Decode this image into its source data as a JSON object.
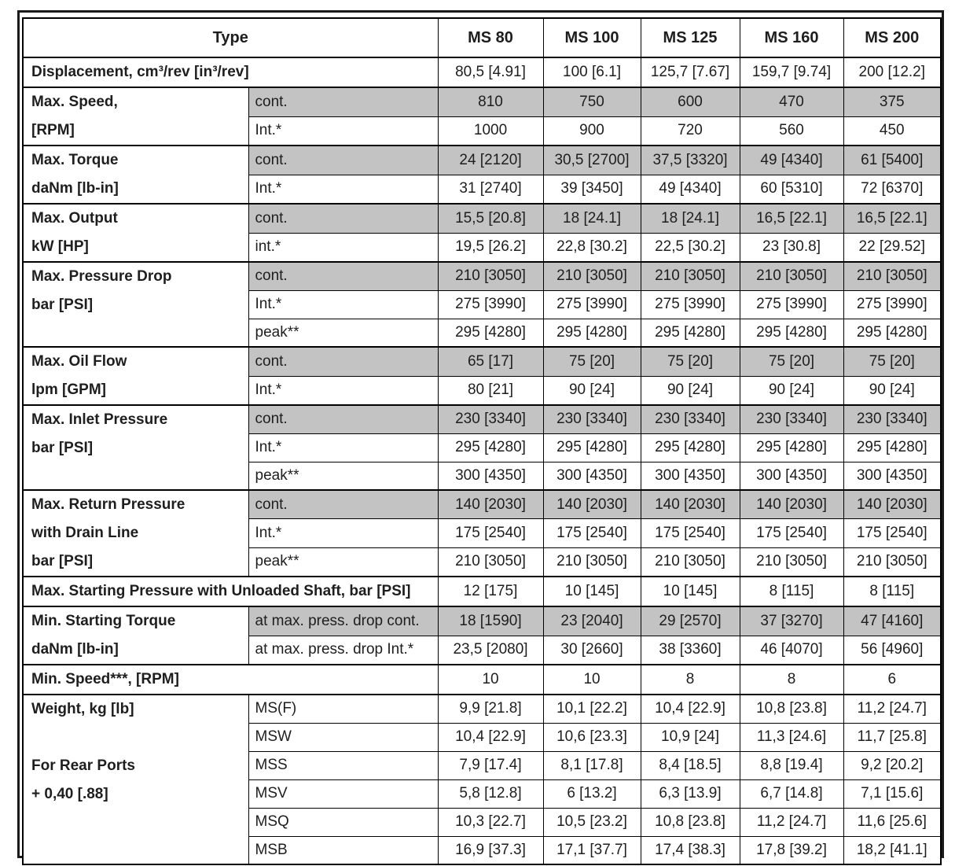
{
  "table": {
    "type_header": "Type",
    "columns": [
      "MS 80",
      "MS 100",
      "MS 125",
      "MS 160",
      "MS 200"
    ],
    "colors": {
      "shaded_cell": "#c3c3c3",
      "border": "#000000",
      "text": "#1e1e1e"
    },
    "groups": [
      {
        "label_lines": [
          "Displacement, cm³/rev [in³/rev]"
        ],
        "full_width_label": true,
        "rows": [
          {
            "sublabel": null,
            "shaded": false,
            "values": [
              "80,5 [4.91]",
              "100 [6.1]",
              "125,7 [7.67]",
              "159,7 [9.74]",
              "200 [12.2]"
            ]
          }
        ]
      },
      {
        "label_lines": [
          "Max. Speed,",
          "[RPM]"
        ],
        "full_width_label": false,
        "rows": [
          {
            "sublabel": "cont.",
            "shaded": true,
            "values": [
              "810",
              "750",
              "600",
              "470",
              "375"
            ]
          },
          {
            "sublabel": "Int.*",
            "shaded": false,
            "values": [
              "1000",
              "900",
              "720",
              "560",
              "450"
            ]
          }
        ]
      },
      {
        "label_lines": [
          "Max. Torque",
          "daNm [lb-in]"
        ],
        "full_width_label": false,
        "rows": [
          {
            "sublabel": "cont.",
            "shaded": true,
            "values": [
              "24 [2120]",
              "30,5 [2700]",
              "37,5 [3320]",
              "49 [4340]",
              "61 [5400]"
            ]
          },
          {
            "sublabel": "Int.*",
            "shaded": false,
            "values": [
              "31 [2740]",
              "39 [3450]",
              "49 [4340]",
              "60 [5310]",
              "72 [6370]"
            ]
          }
        ]
      },
      {
        "label_lines": [
          "Max. Output",
          "kW [HP]"
        ],
        "full_width_label": false,
        "rows": [
          {
            "sublabel": "cont.",
            "shaded": true,
            "values": [
              "15,5 [20.8]",
              "18 [24.1]",
              "18 [24.1]",
              "16,5 [22.1]",
              "16,5 [22.1]"
            ]
          },
          {
            "sublabel": "int.*",
            "shaded": false,
            "values": [
              "19,5 [26.2]",
              "22,8 [30.2]",
              "22,5 [30.2]",
              "23 [30.8]",
              "22 [29.52]"
            ]
          }
        ]
      },
      {
        "label_lines": [
          "Max. Pressure Drop",
          "bar [PSI]"
        ],
        "full_width_label": false,
        "rows": [
          {
            "sublabel": "cont.",
            "shaded": true,
            "values": [
              "210 [3050]",
              "210 [3050]",
              "210 [3050]",
              "210 [3050]",
              "210 [3050]"
            ]
          },
          {
            "sublabel": "Int.*",
            "shaded": false,
            "values": [
              "275 [3990]",
              "275 [3990]",
              "275 [3990]",
              "275 [3990]",
              "275 [3990]"
            ]
          },
          {
            "sublabel": "peak**",
            "shaded": false,
            "values": [
              "295 [4280]",
              "295 [4280]",
              "295 [4280]",
              "295 [4280]",
              "295 [4280]"
            ]
          }
        ]
      },
      {
        "label_lines": [
          "Max. Oil Flow",
          "lpm [GPM]"
        ],
        "full_width_label": false,
        "rows": [
          {
            "sublabel": "cont.",
            "shaded": true,
            "values": [
              "65 [17]",
              "75 [20]",
              "75 [20]",
              "75 [20]",
              "75 [20]"
            ]
          },
          {
            "sublabel": "Int.*",
            "shaded": false,
            "values": [
              "80 [21]",
              "90 [24]",
              "90 [24]",
              "90 [24]",
              "90 [24]"
            ]
          }
        ]
      },
      {
        "label_lines": [
          "Max. Inlet Pressure",
          "bar [PSI]"
        ],
        "full_width_label": false,
        "rows": [
          {
            "sublabel": "cont.",
            "shaded": true,
            "values": [
              "230 [3340]",
              "230 [3340]",
              "230 [3340]",
              "230 [3340]",
              "230 [3340]"
            ]
          },
          {
            "sublabel": "Int.*",
            "shaded": false,
            "values": [
              "295 [4280]",
              "295 [4280]",
              "295 [4280]",
              "295 [4280]",
              "295 [4280]"
            ]
          },
          {
            "sublabel": "peak**",
            "shaded": false,
            "values": [
              "300 [4350]",
              "300 [4350]",
              "300 [4350]",
              "300 [4350]",
              "300 [4350]"
            ]
          }
        ]
      },
      {
        "label_lines": [
          "Max. Return Pressure",
          "with Drain Line",
          "bar [PSI]"
        ],
        "full_width_label": false,
        "rows": [
          {
            "sublabel": "cont.",
            "shaded": true,
            "values": [
              "140 [2030]",
              "140 [2030]",
              "140 [2030]",
              "140 [2030]",
              "140 [2030]"
            ]
          },
          {
            "sublabel": "Int.*",
            "shaded": false,
            "values": [
              "175 [2540]",
              "175 [2540]",
              "175 [2540]",
              "175 [2540]",
              "175 [2540]"
            ]
          },
          {
            "sublabel": "peak**",
            "shaded": false,
            "values": [
              "210 [3050]",
              "210 [3050]",
              "210 [3050]",
              "210 [3050]",
              "210 [3050]"
            ]
          }
        ]
      },
      {
        "label_lines": [
          "Max. Starting Pressure with  Unloaded Shaft, bar [PSI]"
        ],
        "full_width_label": true,
        "rows": [
          {
            "sublabel": null,
            "shaded": false,
            "values": [
              "12 [175]",
              "10 [145]",
              "10 [145]",
              "8 [115]",
              "8 [115]"
            ]
          }
        ]
      },
      {
        "label_lines": [
          "Min. Starting Torque",
          "daNm [lb-in]"
        ],
        "full_width_label": false,
        "rows": [
          {
            "sublabel": "at max. press. drop cont.",
            "shaded": true,
            "values": [
              "18 [1590]",
              "23 [2040]",
              "29 [2570]",
              "37 [3270]",
              "47 [4160]"
            ]
          },
          {
            "sublabel": "at max. press. drop  Int.*",
            "shaded": false,
            "values": [
              "23,5 [2080]",
              "30 [2660]",
              "38 [3360]",
              "46 [4070]",
              "56 [4960]"
            ]
          }
        ]
      },
      {
        "label_lines": [
          "Min. Speed***, [RPM]"
        ],
        "full_width_label": true,
        "rows": [
          {
            "sublabel": null,
            "shaded": false,
            "values": [
              "10",
              "10",
              "8",
              "8",
              "6"
            ]
          }
        ]
      },
      {
        "label_lines": [
          "Weight, kg [lb]",
          "",
          "For Rear Ports",
          "+ 0,40 [.88]"
        ],
        "full_width_label": false,
        "rows": [
          {
            "sublabel": "MS(F)",
            "shaded": false,
            "values": [
              "9,9 [21.8]",
              "10,1 [22.2]",
              "10,4 [22.9]",
              "10,8 [23.8]",
              "11,2 [24.7]"
            ]
          },
          {
            "sublabel": "MSW",
            "shaded": false,
            "values": [
              "10,4 [22.9]",
              "10,6 [23.3]",
              "10,9 [24]",
              "11,3 [24.6]",
              "11,7 [25.8]"
            ]
          },
          {
            "sublabel": "MSS",
            "shaded": false,
            "values": [
              "7,9 [17.4]",
              "8,1 [17.8]",
              "8,4 [18.5]",
              "8,8 [19.4]",
              "9,2 [20.2]"
            ]
          },
          {
            "sublabel": "MSV",
            "shaded": false,
            "values": [
              "5,8 [12.8]",
              "6 [13.2]",
              "6,3 [13.9]",
              "6,7 [14.8]",
              "7,1 [15.6]"
            ]
          },
          {
            "sublabel": "MSQ",
            "shaded": false,
            "values": [
              "10,3 [22.7]",
              "10,5 [23.2]",
              "10,8 [23.8]",
              "11,2 [24.7]",
              "11,6 [25.6]"
            ]
          },
          {
            "sublabel": "MSB",
            "shaded": false,
            "values": [
              "16,9 [37.3]",
              "17,1 [37.7]",
              "17,4 [38.3]",
              "17,8 [39.2]",
              "18,2 [41.1]"
            ]
          }
        ]
      }
    ]
  }
}
